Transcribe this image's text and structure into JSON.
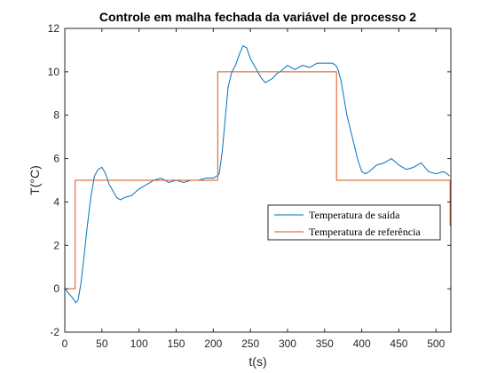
{
  "chart_data": {
    "type": "line",
    "title": "Controle em malha fechada da variável de processo 2",
    "xlabel": "t(s)",
    "ylabel": "T(°C)",
    "xlim": [
      0,
      520
    ],
    "ylim": [
      -2,
      12
    ],
    "xticks": [
      0,
      50,
      100,
      150,
      200,
      250,
      300,
      350,
      400,
      450,
      500
    ],
    "yticks": [
      -2,
      0,
      2,
      4,
      6,
      8,
      10,
      12
    ],
    "grid": false,
    "legend_position": "right",
    "colors": {
      "output": "#0072BD",
      "reference": "#D95319"
    },
    "series": [
      {
        "name": "Temperatura de saída",
        "x": [
          0,
          5,
          10,
          15,
          18,
          22,
          26,
          30,
          35,
          40,
          45,
          50,
          55,
          60,
          65,
          70,
          75,
          80,
          90,
          100,
          110,
          120,
          130,
          140,
          150,
          160,
          170,
          180,
          190,
          200,
          205,
          208,
          212,
          216,
          220,
          225,
          230,
          235,
          240,
          245,
          250,
          255,
          260,
          265,
          270,
          275,
          280,
          285,
          290,
          300,
          310,
          320,
          330,
          340,
          350,
          360,
          365,
          368,
          372,
          376,
          380,
          385,
          390,
          395,
          400,
          405,
          410,
          420,
          430,
          440,
          450,
          460,
          470,
          480,
          490,
          500,
          510,
          515,
          518
        ],
        "y": [
          0.0,
          -0.2,
          -0.4,
          -0.65,
          -0.5,
          0.3,
          1.5,
          2.8,
          4.2,
          5.2,
          5.5,
          5.6,
          5.3,
          4.8,
          4.5,
          4.2,
          4.1,
          4.2,
          4.3,
          4.6,
          4.8,
          5.0,
          5.1,
          4.9,
          5.0,
          4.9,
          5.0,
          5.0,
          5.1,
          5.1,
          5.2,
          5.3,
          6.3,
          7.8,
          9.3,
          10.0,
          10.3,
          10.8,
          11.2,
          11.1,
          10.6,
          10.3,
          10.0,
          9.7,
          9.5,
          9.6,
          9.7,
          9.9,
          10.0,
          10.3,
          10.1,
          10.3,
          10.2,
          10.4,
          10.4,
          10.4,
          10.3,
          10.1,
          9.6,
          8.8,
          8.0,
          7.3,
          6.6,
          5.9,
          5.4,
          5.3,
          5.4,
          5.7,
          5.8,
          6.0,
          5.7,
          5.5,
          5.6,
          5.8,
          5.4,
          5.3,
          5.4,
          5.3,
          5.2
        ]
      },
      {
        "name": "Temperatura de referência",
        "x": [
          0,
          14,
          14,
          206,
          206,
          366,
          366,
          519,
          519
        ],
        "y": [
          0,
          0,
          5,
          5,
          10,
          10,
          5,
          5,
          2.9
        ]
      }
    ]
  }
}
